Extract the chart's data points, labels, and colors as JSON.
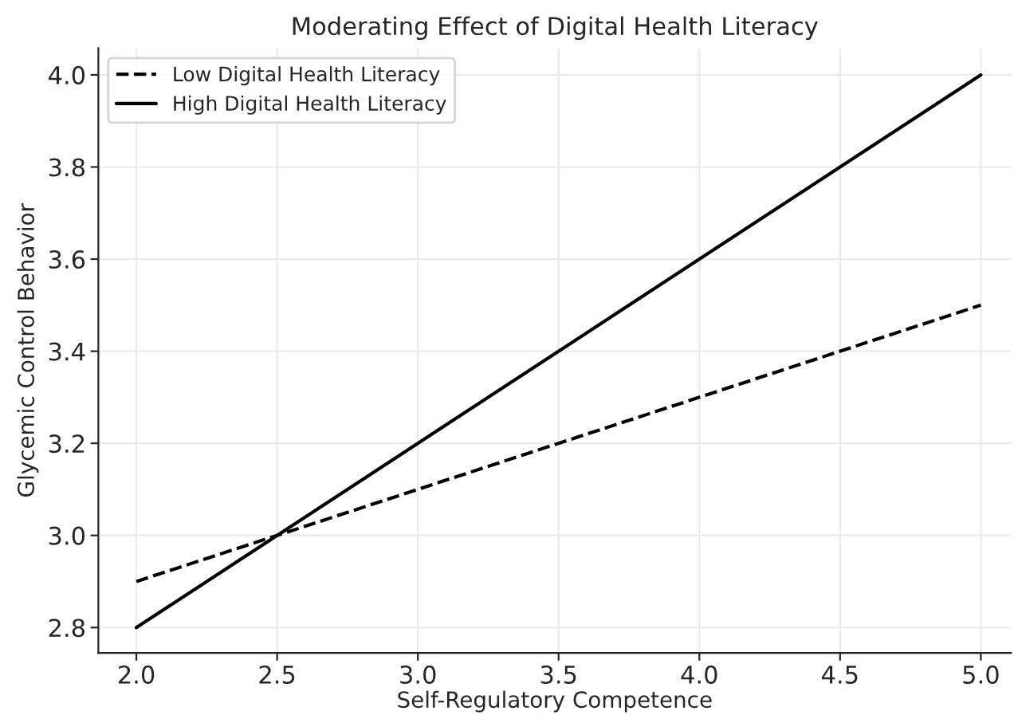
{
  "chart_data": {
    "type": "line",
    "title": "Moderating Effect of Digital Health Literacy",
    "xlabel": "Self-Regulatory Competence",
    "ylabel": "Glycemic Control Behavior",
    "x": [
      2.0,
      5.0
    ],
    "series": [
      {
        "name": "Low Digital Health Literacy",
        "color": "#000000",
        "values": [
          2.9,
          3.5
        ],
        "line_style": "dashed"
      },
      {
        "name": "High Digital Health Literacy",
        "color": "#000000",
        "values": [
          2.8,
          4.0
        ],
        "line_style": "solid"
      }
    ],
    "xlim": [
      1.865,
      5.107
    ],
    "ylim": [
      2.745,
      4.058
    ],
    "xticks": [
      {
        "value": 2,
        "label": "2.0"
      },
      2.5,
      {
        "value": 3,
        "label": "3.0"
      },
      3.5,
      {
        "value": 4,
        "label": "4.0"
      },
      4.5,
      {
        "value": 5,
        "label": "5.0"
      }
    ],
    "yticks": [
      2.8,
      {
        "value": 3,
        "label": "3.0"
      },
      3.2,
      3.4,
      3.6,
      3.8,
      {
        "value": 4,
        "label": "4.0"
      }
    ],
    "grid": true,
    "legend": "top left",
    "marker": "none"
  }
}
